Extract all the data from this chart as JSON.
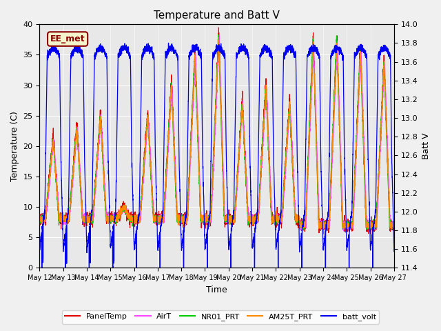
{
  "title": "Temperature and Batt V",
  "xlabel": "Time",
  "ylabel_left": "Temperature (C)",
  "ylabel_right": "Batt V",
  "annotation": "EE_met",
  "ylim_left": [
    0,
    40
  ],
  "ylim_right": [
    11.4,
    14.0
  ],
  "xtick_labels": [
    "May 12",
    "May 13",
    "May 14",
    "May 15",
    "May 16",
    "May 17",
    "May 18",
    "May 19",
    "May 20",
    "May 21",
    "May 22",
    "May 23",
    "May 24",
    "May 25",
    "May 26",
    "May 27"
  ],
  "legend_entries": [
    {
      "label": "PanelTemp",
      "color": "#dd0000"
    },
    {
      "label": "AirT",
      "color": "#ff44ff"
    },
    {
      "label": "NR01_PRT",
      "color": "#00cc00"
    },
    {
      "label": "AM25T_PRT",
      "color": "#ff8800"
    },
    {
      "label": "batt_volt",
      "color": "#0000ee"
    }
  ],
  "fig_bg": "#f0f0f0",
  "axes_bg": "#e8e8e8",
  "grid_color": "#ffffff",
  "num_days": 15,
  "pts_per_day": 288,
  "seed": 42
}
